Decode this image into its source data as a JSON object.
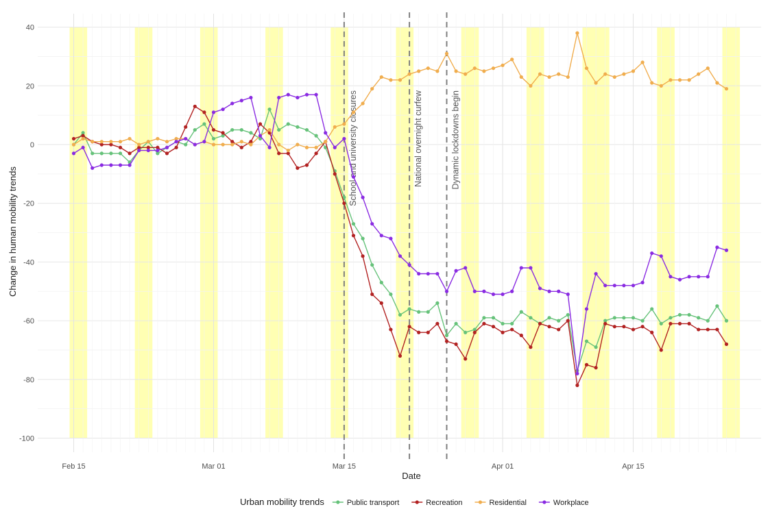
{
  "chart_data": {
    "type": "line",
    "xlabel": "Date",
    "ylabel": "Change in human mobility trends",
    "ylim": [
      -100,
      40
    ],
    "yticks": [
      -100,
      -80,
      -60,
      -40,
      -20,
      0,
      20,
      40
    ],
    "x_start": "2020-02-15",
    "x_end": "2020-04-26",
    "xticks": [
      {
        "date": "2020-02-15",
        "label": "Feb 15"
      },
      {
        "date": "2020-03-01",
        "label": "Mar 01"
      },
      {
        "date": "2020-03-15",
        "label": "Mar 15"
      },
      {
        "date": "2020-04-01",
        "label": "Apr 01"
      },
      {
        "date": "2020-04-15",
        "label": "Apr 15"
      }
    ],
    "grid": true,
    "weekend_bands": [
      [
        "2020-02-15",
        "2020-02-16"
      ],
      [
        "2020-02-22",
        "2020-02-23"
      ],
      [
        "2020-02-29",
        "2020-03-01"
      ],
      [
        "2020-03-07",
        "2020-03-08"
      ],
      [
        "2020-03-14",
        "2020-03-15"
      ],
      [
        "2020-03-21",
        "2020-03-22"
      ],
      [
        "2020-03-28",
        "2020-03-29"
      ],
      [
        "2020-04-04",
        "2020-04-05"
      ],
      [
        "2020-04-10",
        "2020-04-12"
      ],
      [
        "2020-04-18",
        "2020-04-19"
      ],
      [
        "2020-04-25",
        "2020-04-26"
      ]
    ],
    "events": [
      {
        "date": "2020-03-15",
        "label": "School and university closures"
      },
      {
        "date": "2020-03-22",
        "label": "National overnight curfew"
      },
      {
        "date": "2020-03-26",
        "label": "Dynamic lockdowns begin"
      }
    ],
    "legend_title": "Urban mobility trends",
    "legend_position": "bottom",
    "series": [
      {
        "name": "Public transport",
        "color": "#66c27a",
        "values": [
          0,
          4,
          -3,
          -3,
          -3,
          -3,
          -6,
          -2,
          1,
          -3,
          -1,
          1,
          0,
          5,
          7,
          2,
          3,
          5,
          5,
          4,
          2,
          12,
          5,
          7,
          6,
          5,
          3,
          -1,
          -9,
          -18,
          -27,
          -32,
          -41,
          -47,
          -51,
          -58,
          -56,
          -57,
          -57,
          -54,
          -65,
          -61,
          -64,
          -63,
          -59,
          -59,
          -61,
          -61,
          -57,
          -59,
          -61,
          -59,
          -60,
          -58,
          -77,
          -67,
          -69,
          -60,
          -59,
          -59,
          -59,
          -60,
          -56,
          -61,
          -59,
          -58,
          -58,
          -59,
          -60,
          -55,
          -60
        ]
      },
      {
        "name": "Recreation",
        "color": "#b22222",
        "values": [
          2,
          3,
          1,
          0,
          0,
          -1,
          -3,
          -1,
          -1,
          -1,
          -3,
          -1,
          6,
          13,
          11,
          5,
          4,
          1,
          -1,
          1,
          7,
          4,
          -3,
          -3,
          -8,
          -7,
          -3,
          1,
          -10,
          -20,
          -31,
          -38,
          -51,
          -54,
          -63,
          -72,
          -62,
          -64,
          -64,
          -61,
          -67,
          -68,
          -73,
          -64,
          -61,
          -62,
          -64,
          -63,
          -65,
          -69,
          -61,
          -62,
          -63,
          -60,
          -82,
          -75,
          -76,
          -61,
          -62,
          -62,
          -63,
          -62,
          -64,
          -70,
          -61,
          -61,
          -61,
          -63,
          -63,
          -63,
          -68
        ]
      },
      {
        "name": "Residential",
        "color": "#f0ad4e",
        "values": [
          0,
          2,
          1,
          1,
          1,
          1,
          2,
          0,
          1,
          2,
          1,
          2,
          2,
          0,
          1,
          0,
          0,
          0,
          1,
          0,
          3,
          5,
          0,
          -2,
          0,
          -1,
          -1,
          1,
          6,
          7,
          11,
          14,
          19,
          23,
          22,
          22,
          24,
          25,
          26,
          25,
          31,
          25,
          24,
          26,
          25,
          26,
          27,
          29,
          23,
          20,
          24,
          23,
          24,
          23,
          38,
          26,
          21,
          24,
          23,
          24,
          25,
          28,
          21,
          20,
          22,
          22,
          22,
          24,
          26,
          21,
          19
        ]
      },
      {
        "name": "Workplace",
        "color": "#8a2be2",
        "values": [
          -3,
          -1,
          -8,
          -7,
          -7,
          -7,
          -7,
          -2,
          -2,
          -2,
          -1,
          1,
          2,
          0,
          1,
          11,
          12,
          14,
          15,
          16,
          3,
          -1,
          16,
          17,
          16,
          17,
          17,
          4,
          -1,
          2,
          -11,
          -18,
          -27,
          -31,
          -32,
          -38,
          -41,
          -44,
          -44,
          -44,
          -50,
          -43,
          -42,
          -50,
          -50,
          -51,
          -51,
          -50,
          -42,
          -42,
          -49,
          -50,
          -50,
          -51,
          -78,
          -56,
          -44,
          -48,
          -48,
          -48,
          -48,
          -47,
          -37,
          -38,
          -45,
          -46,
          -45,
          -45,
          -45,
          -35,
          -36
        ]
      }
    ]
  }
}
